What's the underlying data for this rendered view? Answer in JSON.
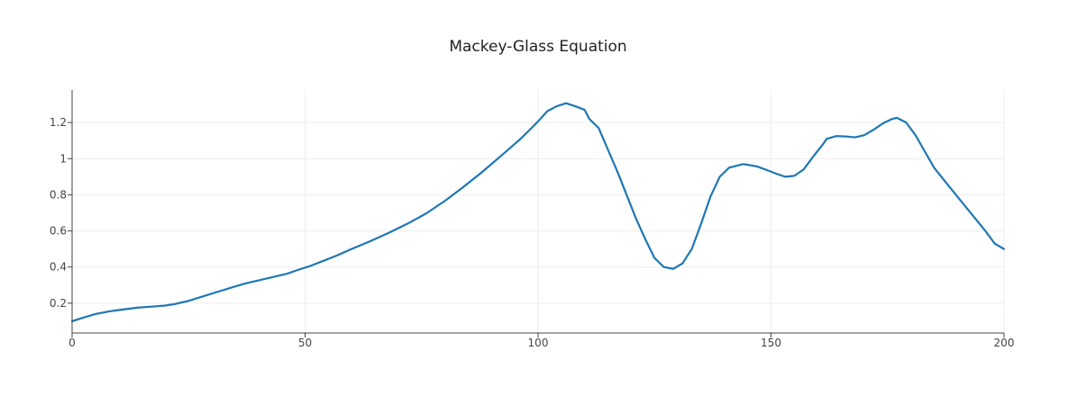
{
  "chart_data": {
    "type": "line",
    "title": "Mackey-Glass Equation",
    "xlabel": "",
    "ylabel": "",
    "xlim": [
      0,
      200
    ],
    "ylim": [
      0.035,
      1.38
    ],
    "x_ticks": [
      0,
      50,
      100,
      150,
      200
    ],
    "x_tick_labels": [
      "0",
      "50",
      "100",
      "150",
      "200"
    ],
    "y_ticks": [
      0.2,
      0.4,
      0.6,
      0.8,
      1.0,
      1.2
    ],
    "y_tick_labels": [
      "0.2",
      "0.4",
      "0.6",
      "0.8",
      "1",
      "1.2"
    ],
    "grid": true,
    "legend": "none",
    "series": [
      {
        "color": "#1f77b4",
        "x": [
          0,
          2,
          5,
          8,
          10,
          14,
          18,
          20,
          22,
          25,
          28,
          31,
          34,
          37,
          40,
          43,
          46,
          48,
          51,
          54,
          57,
          60,
          64,
          68,
          72,
          76,
          80,
          84,
          88,
          92,
          96,
          98,
          100,
          102,
          104,
          106,
          108,
          110,
          111,
          113,
          115,
          117,
          119,
          121,
          123,
          125,
          127,
          129,
          131,
          133,
          135,
          137,
          139,
          141,
          143,
          144,
          145,
          147,
          149,
          151,
          153,
          155,
          157,
          159,
          161,
          162,
          164,
          166,
          168,
          170,
          172,
          174,
          176,
          177,
          179,
          181,
          183,
          185,
          187,
          190,
          193,
          196,
          198,
          200
        ],
        "y": [
          0.1,
          0.117,
          0.14,
          0.155,
          0.162,
          0.175,
          0.183,
          0.187,
          0.195,
          0.213,
          0.237,
          0.261,
          0.285,
          0.308,
          0.326,
          0.344,
          0.362,
          0.38,
          0.405,
          0.435,
          0.466,
          0.5,
          0.543,
          0.59,
          0.64,
          0.697,
          0.766,
          0.844,
          0.926,
          1.014,
          1.104,
          1.154,
          1.206,
          1.263,
          1.29,
          1.307,
          1.29,
          1.27,
          1.22,
          1.17,
          1.05,
          0.93,
          0.8,
          0.67,
          0.555,
          0.45,
          0.4,
          0.39,
          0.42,
          0.5,
          0.64,
          0.79,
          0.9,
          0.95,
          0.963,
          0.97,
          0.966,
          0.957,
          0.938,
          0.918,
          0.9,
          0.905,
          0.94,
          1.01,
          1.075,
          1.11,
          1.125,
          1.123,
          1.118,
          1.13,
          1.16,
          1.195,
          1.22,
          1.226,
          1.2,
          1.13,
          1.04,
          0.95,
          0.885,
          0.79,
          0.695,
          0.6,
          0.53,
          0.5
        ]
      }
    ]
  }
}
